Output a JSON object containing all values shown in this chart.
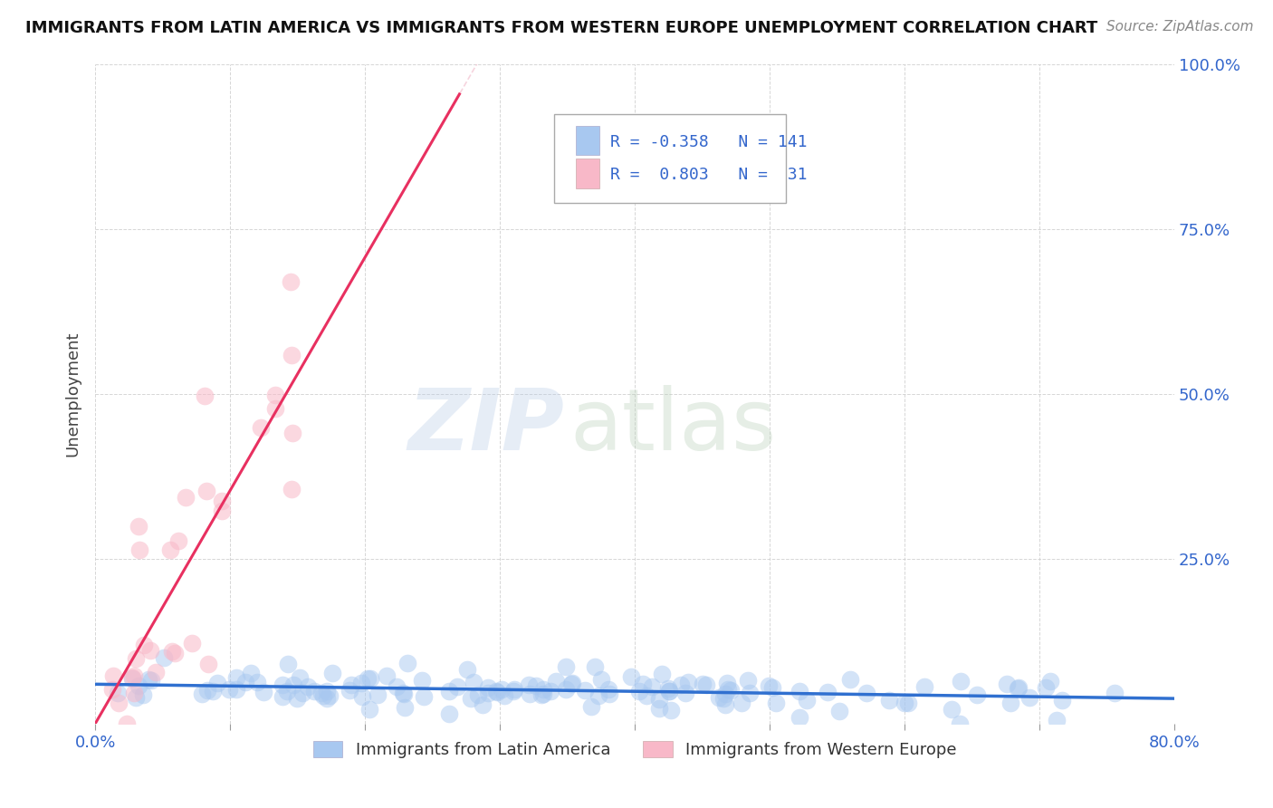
{
  "title": "IMMIGRANTS FROM LATIN AMERICA VS IMMIGRANTS FROM WESTERN EUROPE UNEMPLOYMENT CORRELATION CHART",
  "source": "Source: ZipAtlas.com",
  "ylabel": "Unemployment",
  "xlim": [
    0.0,
    0.8
  ],
  "ylim": [
    0.0,
    1.0
  ],
  "xtick_positions": [
    0.0,
    0.1,
    0.2,
    0.3,
    0.4,
    0.5,
    0.6,
    0.7,
    0.8
  ],
  "xticklabels": [
    "0.0%",
    "",
    "",
    "",
    "",
    "",
    "",
    "",
    "80.0%"
  ],
  "ytick_positions": [
    0.0,
    0.25,
    0.5,
    0.75,
    1.0
  ],
  "ytick_labels": [
    "",
    "25.0%",
    "50.0%",
    "75.0%",
    "100.0%"
  ],
  "blue_color": "#a8c8f0",
  "pink_color": "#f8b8c8",
  "blue_line_color": "#3070d0",
  "pink_line_color": "#e83060",
  "pink_dash_color": "#f0a0b8",
  "watermark_zip": "ZIP",
  "watermark_atlas": "atlas",
  "legend_R_blue": "-0.358",
  "legend_N_blue": "141",
  "legend_R_pink": "0.803",
  "legend_N_pink": "31",
  "blue_label": "Immigrants from Latin America",
  "pink_label": "Immigrants from Western Europe",
  "grid_color": "#cccccc",
  "background_color": "#ffffff",
  "blue_n": 141,
  "pink_n": 31,
  "blue_R": -0.358,
  "pink_R": 0.803
}
